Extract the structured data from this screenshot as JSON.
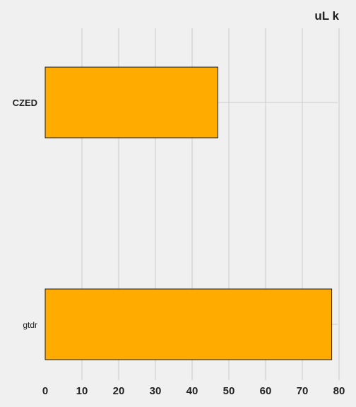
{
  "chart_data": {
    "type": "bar",
    "orientation": "horizontal",
    "categories": [
      "CZED",
      "gtdr"
    ],
    "values": [
      47,
      78
    ],
    "title": "",
    "xlabel": "uL k",
    "ylabel": "",
    "xlim": [
      0,
      80
    ],
    "xticks": [
      "0",
      "10",
      "20",
      "30",
      "40",
      "50",
      "60",
      "70",
      "80"
    ],
    "grid": true,
    "legend": "none",
    "colors": {
      "bar": "#ffab00",
      "bar_edge": "#1a1a1a",
      "grid": "#cccccc",
      "background": "#f0f0f0"
    }
  }
}
